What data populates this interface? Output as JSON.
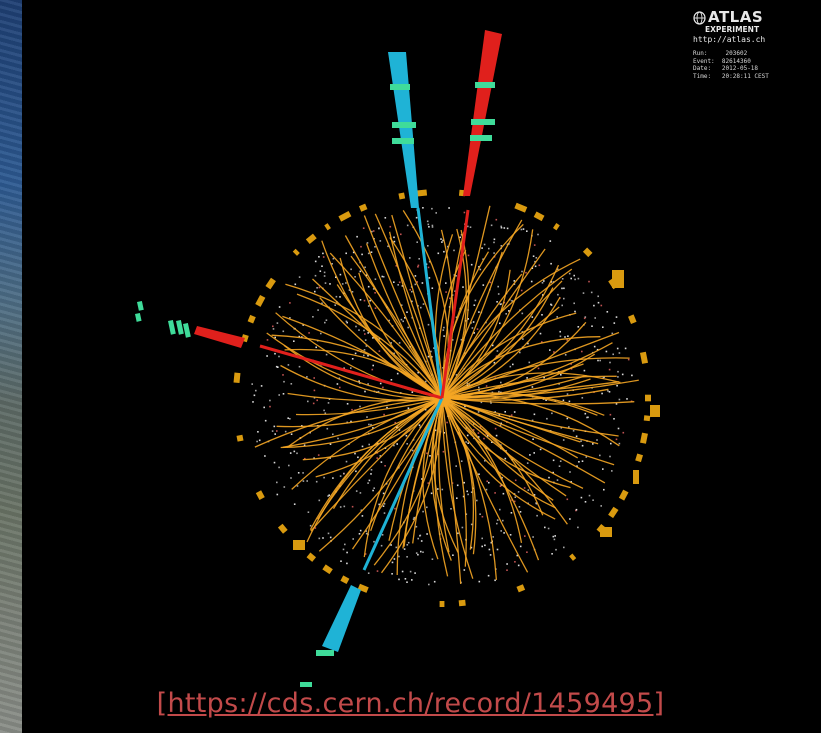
{
  "logo": {
    "title": "ATLAS",
    "subtitle": "EXPERIMENT",
    "url": "http://atlas.ch"
  },
  "event_info": [
    {
      "label": "Run:",
      "value": "203602"
    },
    {
      "label": "Event:",
      "value": "82614360"
    },
    {
      "label": "Date:",
      "value": "2012-05-18"
    },
    {
      "label": "Time:",
      "value": "20:28:11 CEST"
    }
  ],
  "link_text": "[https://cds.cern.ch/record/1459495]",
  "colors": {
    "background": "#000000",
    "tracks": "#f5a623",
    "electron_cyan": "#1fb3d6",
    "muon_red": "#e0201c",
    "calorimeter_green": "#3fdc9a",
    "calorimeter_gold": "#d99a0f",
    "link": "#c24a4a"
  },
  "icons": [
    "atlas-logo-icon"
  ]
}
